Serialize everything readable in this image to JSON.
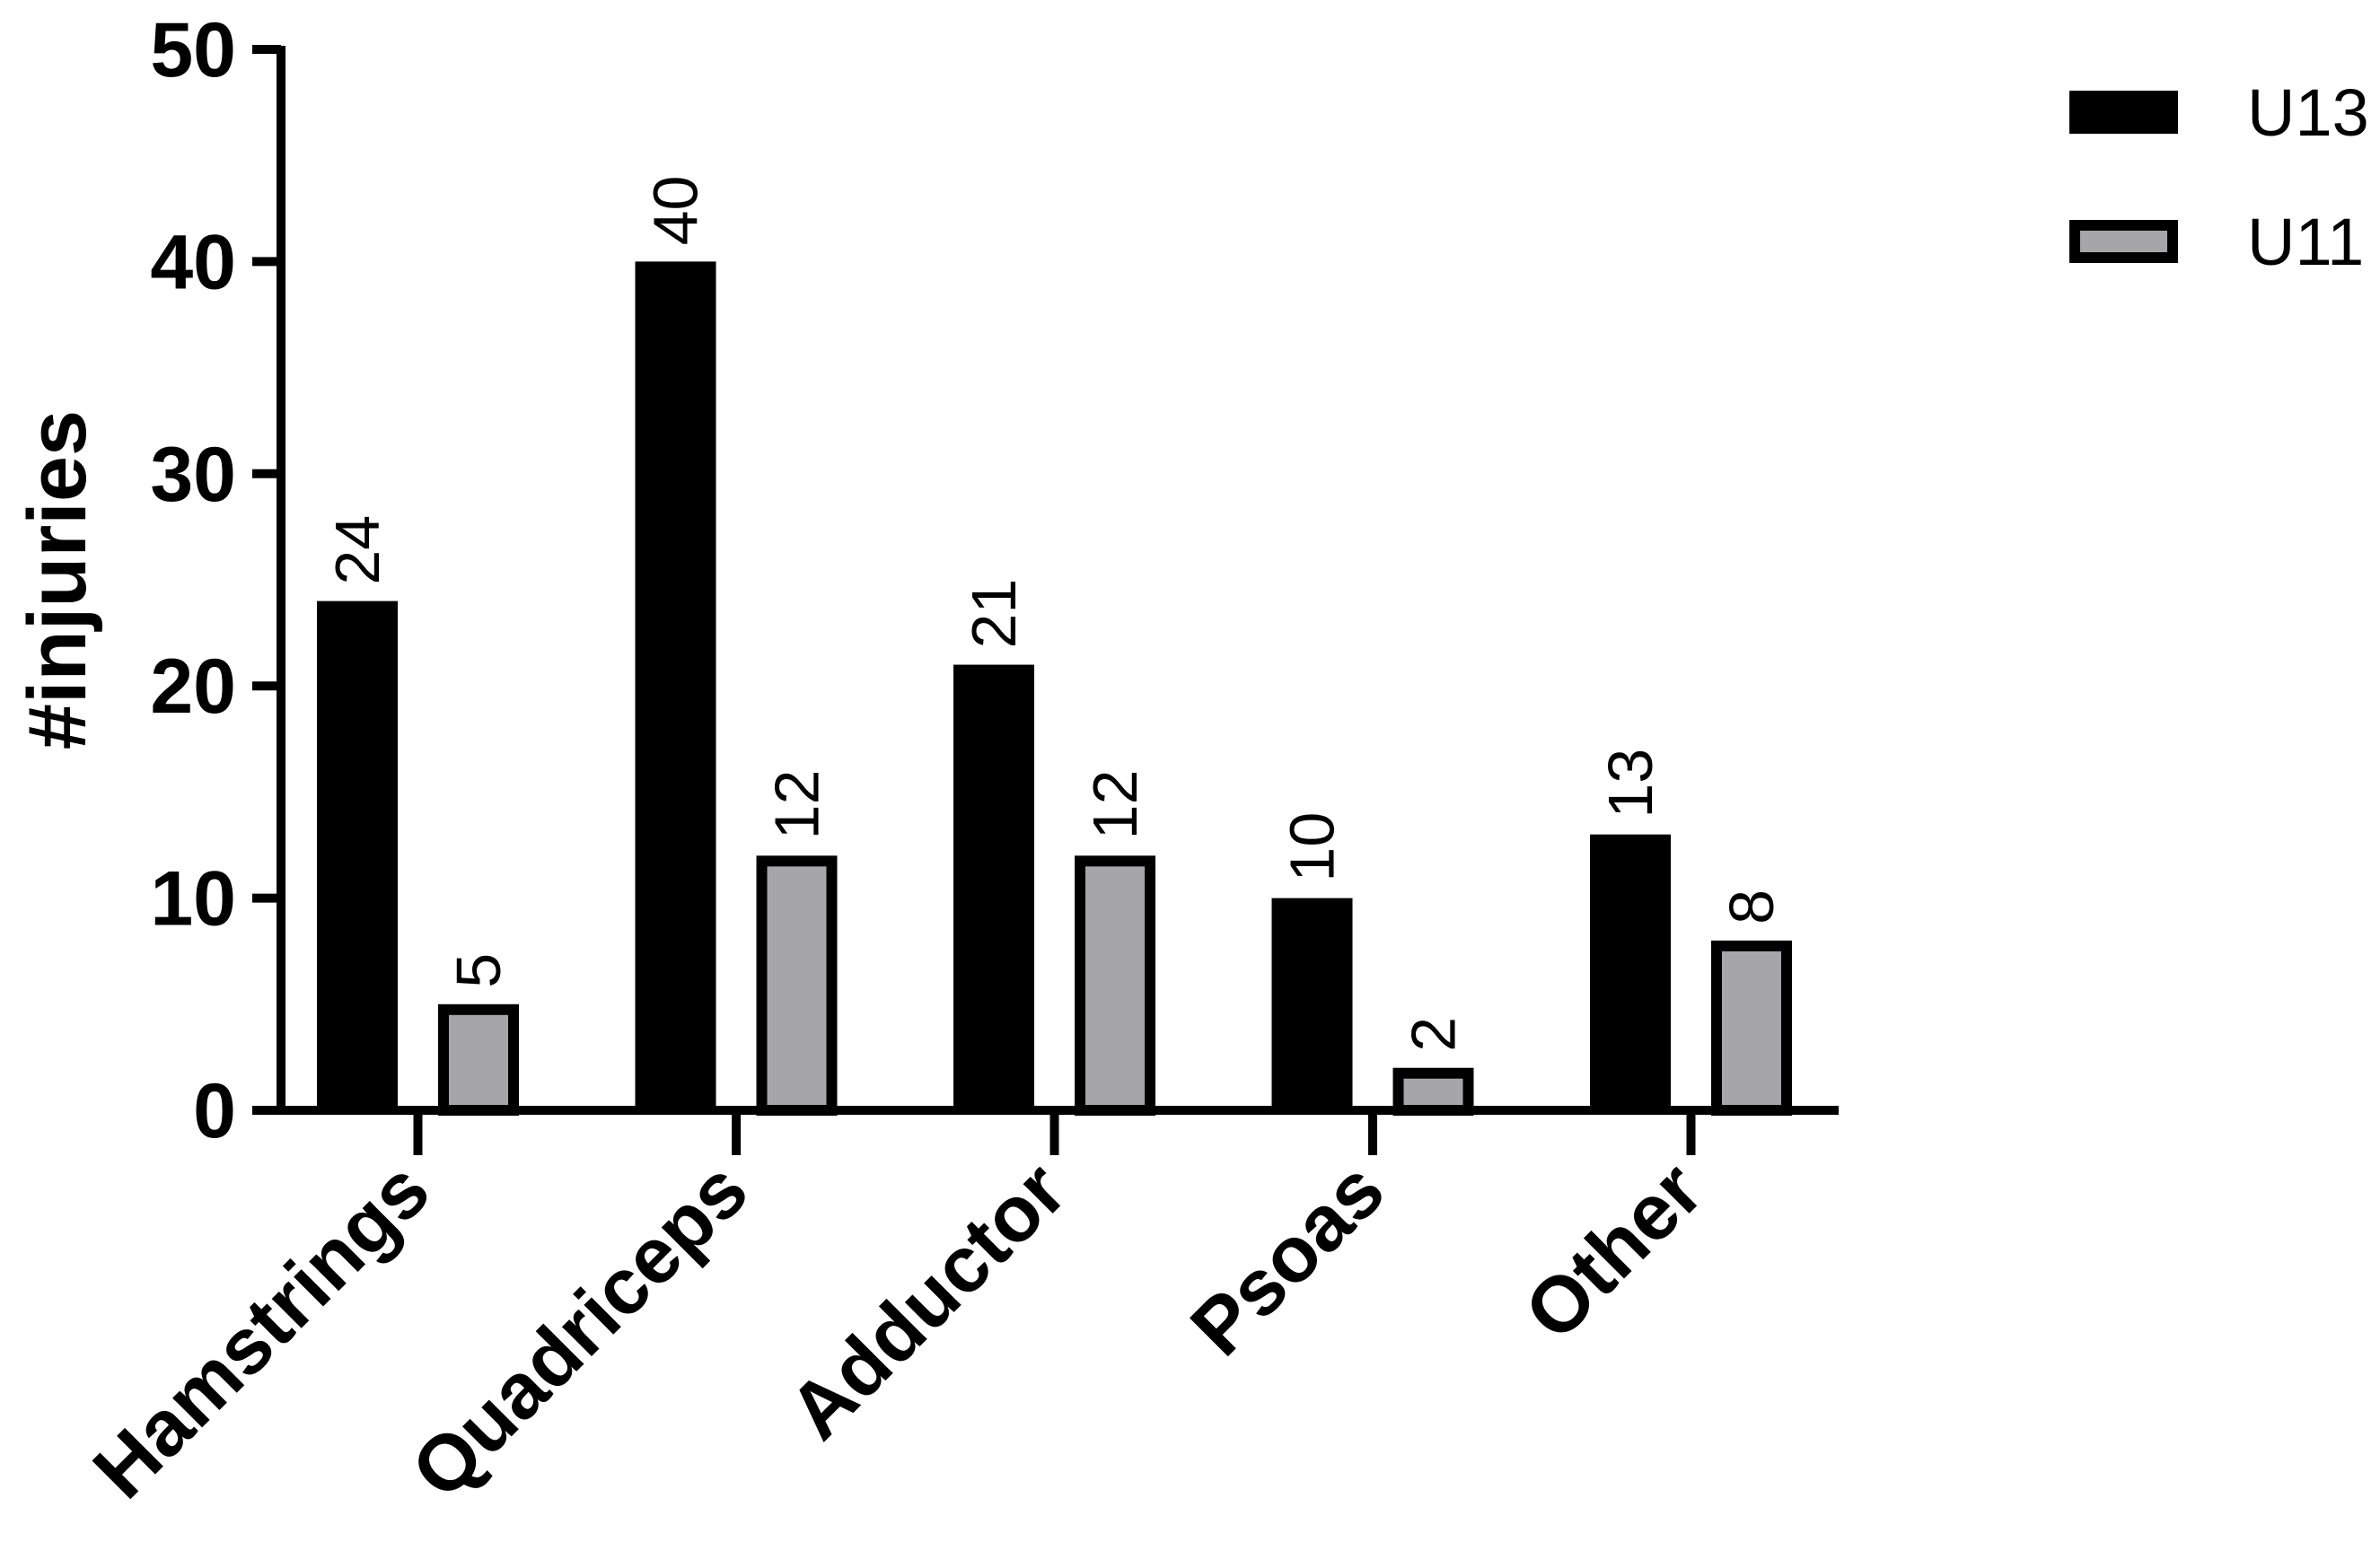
{
  "chart_data": {
    "type": "bar",
    "title": "",
    "xlabel": "",
    "ylabel": "#injuries",
    "ylim": [
      0,
      50
    ],
    "yticks": [
      0,
      10,
      20,
      30,
      40,
      50
    ],
    "categories": [
      "Hamstrings",
      "Quadriceps",
      "Adductor",
      "Psoas",
      "Other"
    ],
    "series": [
      {
        "name": "U13",
        "values": [
          24,
          40,
          21,
          10,
          13
        ],
        "color": "#000000"
      },
      {
        "name": "U11",
        "values": [
          5,
          12,
          12,
          2,
          8
        ],
        "color": "#a6a6aa"
      }
    ],
    "data_labels": true,
    "legend_position": "top-right",
    "grid": false
  }
}
